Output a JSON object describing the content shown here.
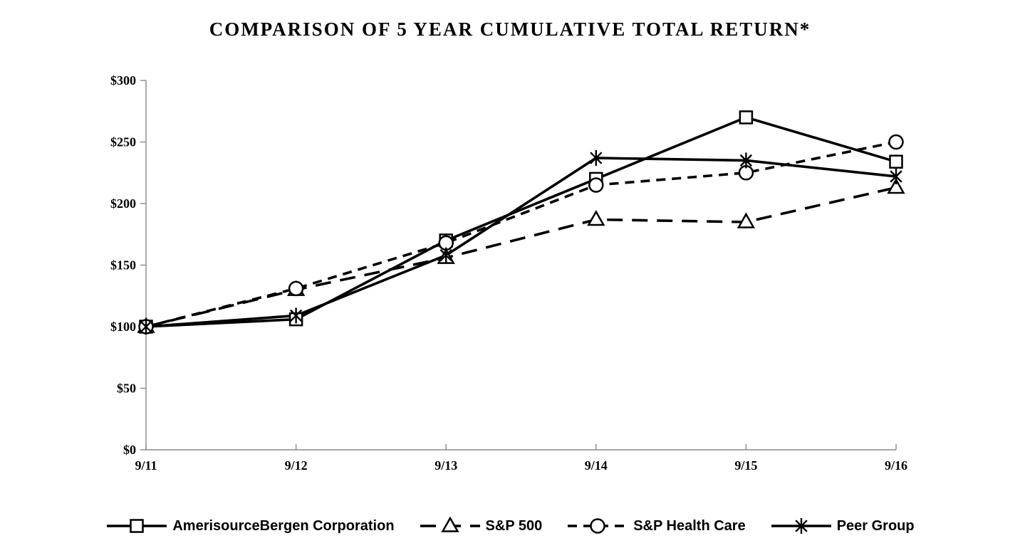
{
  "title": "COMPARISON OF 5 YEAR CUMULATIVE TOTAL RETURN*",
  "chart_data": {
    "type": "line",
    "categories": [
      "9/11",
      "9/12",
      "9/13",
      "9/14",
      "9/15",
      "9/16"
    ],
    "series": [
      {
        "name": "AmerisourceBergen Corporation",
        "marker": "square",
        "dash": "solid",
        "values": [
          100,
          106,
          170,
          220,
          270,
          234
        ]
      },
      {
        "name": "S&P 500",
        "marker": "triangle",
        "dash": "long-dash",
        "values": [
          100,
          130,
          156,
          187,
          185,
          213
        ]
      },
      {
        "name": "S&P Health Care",
        "marker": "circle",
        "dash": "dash",
        "values": [
          100,
          131,
          168,
          215,
          225,
          250
        ]
      },
      {
        "name": "Peer Group",
        "marker": "asterisk",
        "dash": "solid",
        "values": [
          100,
          109,
          158,
          237,
          235,
          222
        ]
      }
    ],
    "ylim": [
      0,
      300
    ],
    "ytick_step": 50,
    "ytick_labels": [
      "$0",
      "$50",
      "$100",
      "$150",
      "$200",
      "$250",
      "$300"
    ],
    "xlabel": "",
    "ylabel": "",
    "grid": false,
    "legend_position": "bottom",
    "colors": {
      "series": "#000000",
      "axis": "#898989",
      "text": "#000000",
      "background": "#ffffff",
      "marker_fill": "#ffffff"
    }
  }
}
